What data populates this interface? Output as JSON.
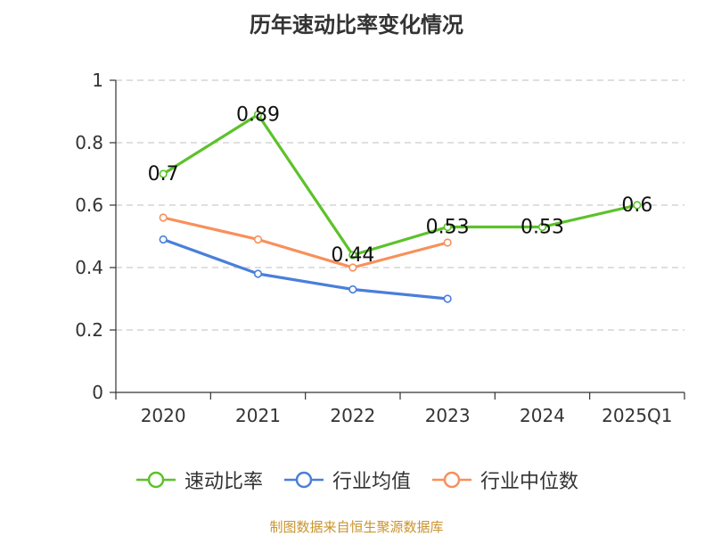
{
  "chart_data": {
    "type": "line",
    "title": "历年速动比率变化情况",
    "categories": [
      "2020",
      "2021",
      "2022",
      "2023",
      "2024",
      "2025Q1"
    ],
    "ylim": [
      0,
      1
    ],
    "yticks": [
      0,
      0.2,
      0.4,
      0.6,
      0.8,
      1
    ],
    "ytick_labels": [
      "0",
      "0.2",
      "0.4",
      "0.6",
      "0.8",
      "1"
    ],
    "grid": true,
    "legend_position": "bottom",
    "series": [
      {
        "name": "速动比率",
        "color": "#5cc22a",
        "values": [
          0.7,
          0.89,
          0.44,
          0.53,
          0.53,
          0.6
        ],
        "labels": [
          "0.7",
          "0.89",
          "0.44",
          "0.53",
          "0.53",
          "0.6"
        ]
      },
      {
        "name": "行业均值",
        "color": "#4a7fdb",
        "values": [
          0.49,
          0.38,
          0.33,
          0.3,
          null,
          null
        ]
      },
      {
        "name": "行业中位数",
        "color": "#f8905b",
        "values": [
          0.56,
          0.49,
          0.4,
          0.48,
          null,
          null
        ]
      }
    ]
  },
  "footer": {
    "source": "制图数据来自恒生聚源数据库",
    "source_color": "#c8942f"
  }
}
